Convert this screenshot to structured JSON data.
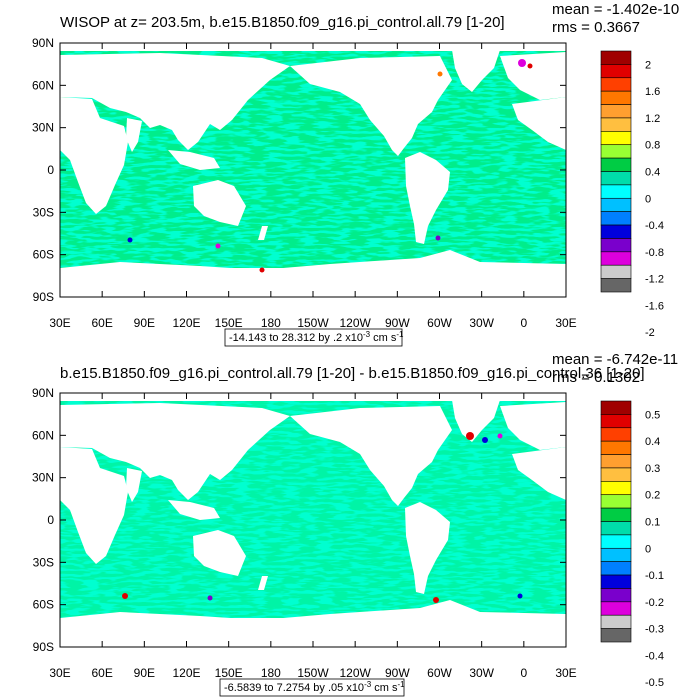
{
  "chart_data": [
    {
      "type": "heatmap",
      "title": "WISOP at z= 203.5m, b.e15.B1850.f09_g16.pi_control.all.79 [1-20]",
      "stats": {
        "mean": "mean = -1.402e-10",
        "rms": "rms = 0.3667"
      },
      "x_ticks": [
        "30E",
        "60E",
        "90E",
        "120E",
        "150E",
        "180",
        "150W",
        "120W",
        "90W",
        "60W",
        "30W",
        "0",
        "30E"
      ],
      "y_ticks": [
        "90N",
        "60N",
        "30N",
        "0",
        "30S",
        "60S",
        "90S"
      ],
      "xlim": [
        30,
        390
      ],
      "ylim": [
        -90,
        90
      ],
      "range_label": "-14.143 to 28.312 by .2 x10",
      "range_exp": "-3",
      "range_unit": " cm s",
      "range_unit_exp": "-1",
      "colorbar_labels": [
        "2",
        "1.6",
        "1.2",
        "0.8",
        "0.4",
        "0",
        "-0.4",
        "-0.8",
        "-1.2",
        "-1.6",
        "-2"
      ],
      "colorbar_colors": [
        "#a00000",
        "#e00000",
        "#ff4000",
        "#ff7700",
        "#ff9f30",
        "#ffbf40",
        "#ffff00",
        "#99ff33",
        "#00cc44",
        "#00ddaa",
        "#00ffff",
        "#00c0ff",
        "#0080ff",
        "#0000dd",
        "#7a00cc",
        "#dd00dd",
        "#cccccc",
        "#666666"
      ]
    },
    {
      "type": "heatmap",
      "title": "b.e15.B1850.f09_g16.pi_control.all.79 [1-20] - b.e15.B1850.f09_g16.pi_control.36 [1-20]",
      "stats": {
        "mean": "mean = -6.742e-11",
        "rms": "rms = 0.1302"
      },
      "x_ticks": [
        "30E",
        "60E",
        "90E",
        "120E",
        "150E",
        "180",
        "150W",
        "120W",
        "90W",
        "60W",
        "30W",
        "0",
        "30E"
      ],
      "y_ticks": [
        "90N",
        "60N",
        "30N",
        "0",
        "30S",
        "60S",
        "90S"
      ],
      "xlim": [
        30,
        390
      ],
      "ylim": [
        -90,
        90
      ],
      "range_label": "-6.5839 to 7.2754 by .05 x10",
      "range_exp": "-3",
      "range_unit": " cm s",
      "range_unit_exp": "-1",
      "colorbar_labels": [
        "0.5",
        "0.4",
        "0.3",
        "0.2",
        "0.1",
        "0",
        "-0.1",
        "-0.2",
        "-0.3",
        "-0.4",
        "-0.5"
      ],
      "colorbar_colors": [
        "#a00000",
        "#e00000",
        "#ff4000",
        "#ff7700",
        "#ff9f30",
        "#ffbf40",
        "#ffff00",
        "#99ff33",
        "#00cc44",
        "#00ddaa",
        "#00ffff",
        "#00c0ff",
        "#0080ff",
        "#0000dd",
        "#7a00cc",
        "#dd00dd",
        "#cccccc",
        "#666666"
      ]
    }
  ],
  "field_colors": {
    "green": "#33d63a",
    "cyan": "#00ffd0"
  }
}
